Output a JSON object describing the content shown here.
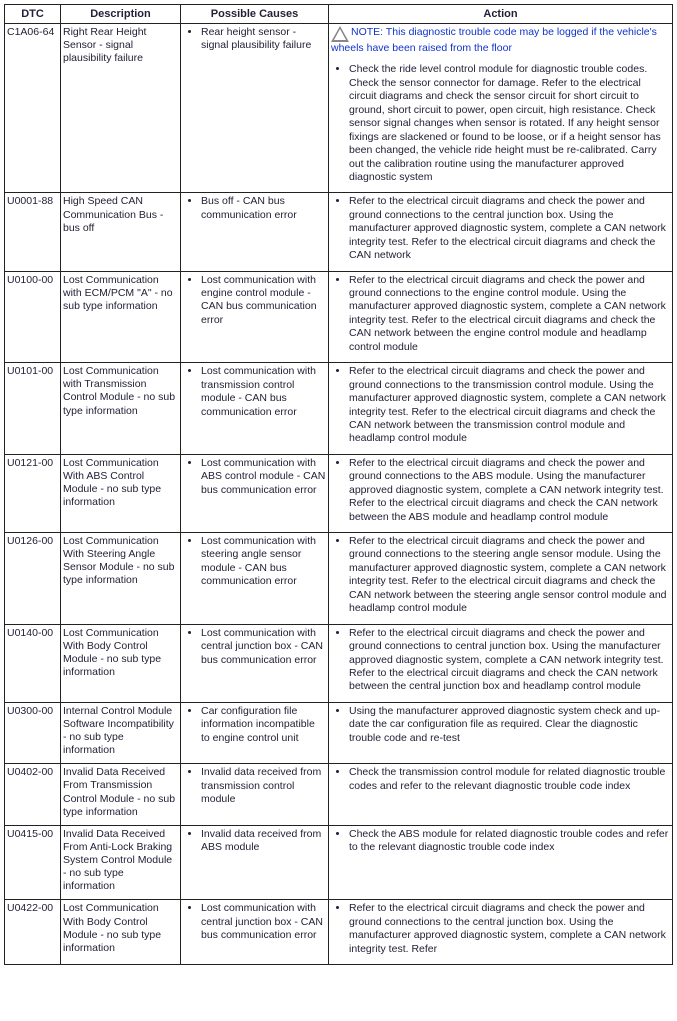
{
  "headers": {
    "dtc": "DTC",
    "description": "Description",
    "causes": "Possible Causes",
    "action": "Action"
  },
  "rows": [
    {
      "code": "C1A06-64",
      "description": "Right Rear Height Sensor - signal plausibility failure",
      "causes": [
        "Rear height sensor - signal plausibility failure"
      ],
      "note": "NOTE: This diagnostic trouble code may be logged if the vehicle's wheels have been raised from the floor",
      "actions": [
        "Check the ride level control module for diagnostic trouble codes. Check the sensor connector for damage. Refer to the electrical circuit diagrams and check the sensor circuit for short circuit to ground, short circuit to power, open circuit, high resistance. Check sensor signal changes when sensor is rotated. If any height sensor fixings are slackened or found to be loose, or if a height sensor has been changed, the vehicle ride height must be re-calibrated. Carry out the calibration routine using the manufacturer approved diagnostic system"
      ]
    },
    {
      "code": "U0001-88",
      "description": "High Speed CAN Communication Bus - bus off",
      "causes": [
        "Bus off - CAN bus communication error"
      ],
      "actions": [
        "Refer to the electrical circuit diagrams and check the power and ground connections to the central junction box. Using the manufacturer approved diagnostic system, complete a CAN network integrity test. Refer to the electrical circuit diagrams and check the CAN network"
      ]
    },
    {
      "code": "U0100-00",
      "description": "Lost Communication with ECM/PCM \"A\" - no sub type information",
      "causes": [
        "Lost communication with engine control module - CAN bus communication error"
      ],
      "actions": [
        "Refer to the electrical circuit diagrams and check the power and ground connections to the engine control module. Using the manufacturer approved diagnostic system, complete a CAN network integrity test. Refer to the electrical circuit diagrams and check the CAN network between the engine control module and headlamp control module"
      ]
    },
    {
      "code": "U0101-00",
      "description": "Lost Communication with Transmission Control Module - no sub type information",
      "causes": [
        "Lost communication with transmission control module - CAN bus communication error"
      ],
      "actions": [
        "Refer to the electrical circuit diagrams and check the power and ground connections to the transmission control module. Using the manufacturer approved diagnostic system, complete a CAN network integrity test. Refer to the electrical circuit diagrams and check the CAN network between the transmission control module and headlamp control module"
      ]
    },
    {
      "code": "U0121-00",
      "description": "Lost Communication With ABS Control Module - no sub type information",
      "causes": [
        "Lost communication with ABS control module - CAN bus communication error"
      ],
      "actions": [
        "Refer to the electrical circuit diagrams and check the power and ground connections to the ABS module. Using the manufacturer approved diagnostic system, complete a CAN network integrity test. Refer to the electrical circuit diagrams and check the CAN network between the ABS module and headlamp control module"
      ]
    },
    {
      "code": "U0126-00",
      "description": "Lost Communication With Steering Angle Sensor Module - no sub type information",
      "causes": [
        "Lost communication with steering angle sensor module - CAN bus communication error"
      ],
      "actions": [
        "Refer to the electrical circuit diagrams and check the power and ground connections to the steering angle sensor module. Using the manufacturer approved diagnostic system, complete a CAN network integrity test. Refer to the electrical circuit diagrams and check the CAN network between the steering angle sensor control module and headlamp control module"
      ]
    },
    {
      "code": "U0140-00",
      "description": "Lost Communication With Body Control Module - no sub type information",
      "causes": [
        "Lost communication with central junction box - CAN bus communication error"
      ],
      "actions": [
        "Refer to the electrical circuit diagrams and check the power and ground connections to central junction box. Using the manufacturer approved diagnostic system, complete a CAN network integrity test. Refer to the electrical circuit diagrams and check the CAN network between the central junction box and headlamp control module"
      ]
    },
    {
      "code": "U0300-00",
      "description": "Internal Control Module Software Incompatibility - no sub type information",
      "causes": [
        "Car configuration file information incompatible to engine control unit"
      ],
      "actions": [
        "Using the manufacturer approved diagnostic system check and up-date the car configuration file as required. Clear the diagnostic trouble code and re-test"
      ]
    },
    {
      "code": "U0402-00",
      "description": "Invalid Data Received From Transmission Control Module - no sub type information",
      "causes": [
        "Invalid data received from transmission control module"
      ],
      "actions": [
        "Check the transmission control module for related diagnostic trouble codes and refer to the relevant diagnostic trouble code index"
      ]
    },
    {
      "code": "U0415-00",
      "description": "Invalid Data Received From Anti-Lock Braking System Control Module - no sub type information",
      "causes": [
        "Invalid data received from ABS module"
      ],
      "actions": [
        "Check the ABS module for related diagnostic trouble codes and refer to the relevant diagnostic trouble code index"
      ]
    },
    {
      "code": "U0422-00",
      "description": "Lost Communication With Body Control Module - no sub type information",
      "causes": [
        "Lost communication with central junction box - CAN bus communication error"
      ],
      "actions": [
        "Refer to the electrical circuit diagrams and check the power and ground connections to the central junction box. Using the manufacturer approved diagnostic system, complete a CAN network integrity test. Refer"
      ]
    }
  ]
}
